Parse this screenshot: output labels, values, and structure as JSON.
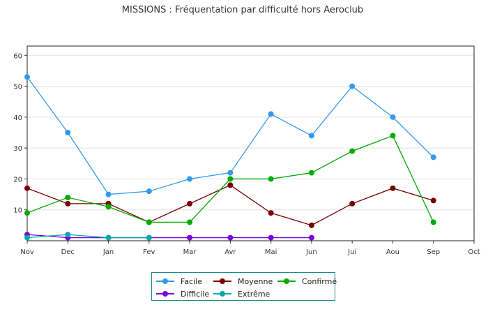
{
  "chart_data": {
    "type": "line",
    "title": "MISSIONS : Fréquentation par difficulté hors Aeroclub",
    "categories": [
      "Nov",
      "Dec",
      "Jan",
      "Fev",
      "Mar",
      "Avr",
      "Mai",
      "Jun",
      "Jui",
      "Aou",
      "Sep",
      "Oct"
    ],
    "y_ticks": [
      "10",
      "20",
      "30",
      "40",
      "50",
      "60"
    ],
    "ylim": [
      0,
      63
    ],
    "grid": true,
    "legend_position": "bottom",
    "series": [
      {
        "name": "Facile",
        "color": "#3399ee",
        "values": [
          53,
          35,
          15,
          16,
          20,
          22,
          41,
          34,
          50,
          40,
          27,
          null
        ]
      },
      {
        "name": "Moyenne",
        "color": "#770000",
        "values": [
          17,
          12,
          12,
          6,
          12,
          18,
          9,
          5,
          12,
          17,
          13,
          null
        ]
      },
      {
        "name": "Confirmé",
        "color": "#00aa00",
        "values": [
          9,
          14,
          11,
          6,
          6,
          20,
          20,
          22,
          29,
          34,
          6,
          null
        ]
      },
      {
        "name": "Difficile",
        "color": "#7700dd",
        "values": [
          2,
          1,
          1,
          1,
          1,
          1,
          1,
          1,
          null,
          null,
          null,
          null
        ]
      },
      {
        "name": "Extrême",
        "color": "#00aaaa",
        "values": [
          1,
          2,
          1,
          1,
          null,
          null,
          null,
          null,
          null,
          null,
          null,
          null
        ]
      }
    ]
  }
}
